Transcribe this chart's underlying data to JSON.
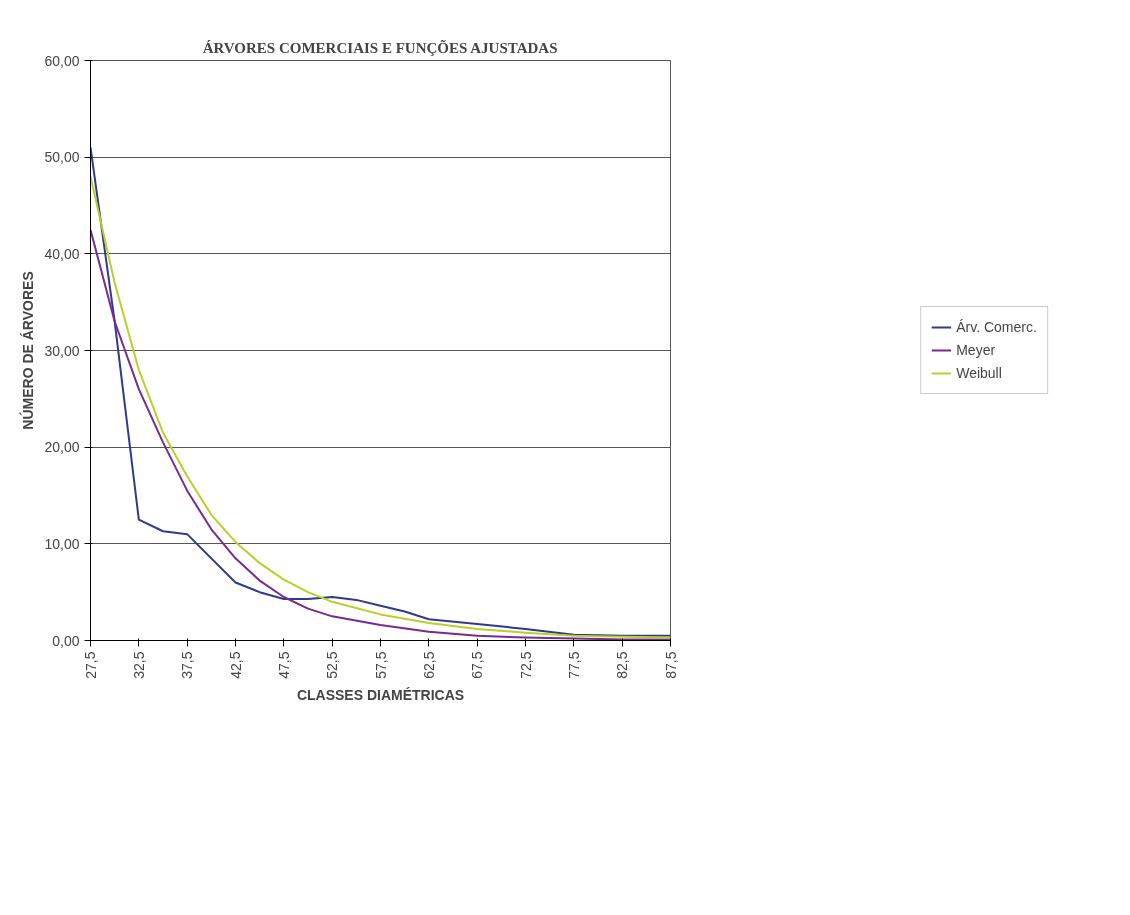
{
  "chart_data": {
    "type": "line",
    "title": "ÁRVORES COMERCIAIS E FUNÇÕES AJUSTADAS",
    "xlabel": "CLASSES DIAMÉTRICAS",
    "ylabel": "NÚMERO DE ÁRVORES",
    "xlim": [
      27.5,
      87.5
    ],
    "xticks": [
      {
        "value": 27.5,
        "label": "27,5"
      },
      {
        "value": 32.5,
        "label": "32,5"
      },
      {
        "value": 37.5,
        "label": "37,5"
      },
      {
        "value": 42.5,
        "label": "42,5"
      },
      {
        "value": 47.5,
        "label": "47,5"
      },
      {
        "value": 52.5,
        "label": "52,5"
      },
      {
        "value": 57.5,
        "label": "57,5"
      },
      {
        "value": 62.5,
        "label": "62,5"
      },
      {
        "value": 67.5,
        "label": "67,5"
      },
      {
        "value": 72.5,
        "label": "72,5"
      },
      {
        "value": 77.5,
        "label": "77,5"
      },
      {
        "value": 82.5,
        "label": "82,5"
      },
      {
        "value": 87.5,
        "label": "87,5"
      }
    ],
    "ylim": [
      0,
      60
    ],
    "yticks": [
      {
        "value": 0,
        "label": "0,00"
      },
      {
        "value": 10,
        "label": "10,00"
      },
      {
        "value": 20,
        "label": "20,00"
      },
      {
        "value": 30,
        "label": "30,00"
      },
      {
        "value": 40,
        "label": "40,00"
      },
      {
        "value": 50,
        "label": "50,00"
      },
      {
        "value": 60,
        "label": "60,00"
      }
    ],
    "grid": "y",
    "legend": "right",
    "marker": "none",
    "line_style": "solid",
    "series": [
      {
        "name": "Árv. Comerc.",
        "color": "#2e3a8c",
        "x": [
          27.5,
          30,
          32.5,
          35,
          37.5,
          40,
          42.5,
          45,
          47.5,
          50,
          52.5,
          55,
          57.5,
          60,
          62.5,
          67.5,
          72.5,
          77.5,
          82.5,
          87.5
        ],
        "values": [
          51,
          33,
          12.5,
          11.3,
          11,
          8.5,
          6,
          5,
          4.3,
          4.3,
          4.5,
          4.2,
          3.6,
          3,
          2.2,
          1.7,
          1.2,
          0.6,
          0.5,
          0.5
        ]
      },
      {
        "name": "Meyer",
        "color": "#7a2a8c",
        "x": [
          27.5,
          30,
          32.5,
          35,
          37.5,
          40,
          42.5,
          45,
          47.5,
          50,
          52.5,
          57.5,
          62.5,
          67.5,
          72.5,
          77.5,
          82.5,
          87.5
        ],
        "values": [
          42.5,
          33,
          26,
          20.5,
          15.5,
          11.5,
          8.5,
          6.2,
          4.5,
          3.3,
          2.5,
          1.6,
          0.9,
          0.5,
          0.3,
          0.2,
          0.1,
          0.1
        ]
      },
      {
        "name": "Weibull",
        "color": "#b8d028",
        "x": [
          27.5,
          30,
          32.5,
          35,
          37.5,
          40,
          42.5,
          45,
          47.5,
          50,
          52.5,
          57.5,
          62.5,
          67.5,
          72.5,
          77.5,
          82.5,
          87.5
        ],
        "values": [
          48,
          37,
          28,
          21.5,
          17,
          13,
          10.2,
          8,
          6.3,
          5,
          4,
          2.7,
          1.8,
          1.2,
          0.8,
          0.5,
          0.4,
          0.3
        ]
      }
    ]
  }
}
